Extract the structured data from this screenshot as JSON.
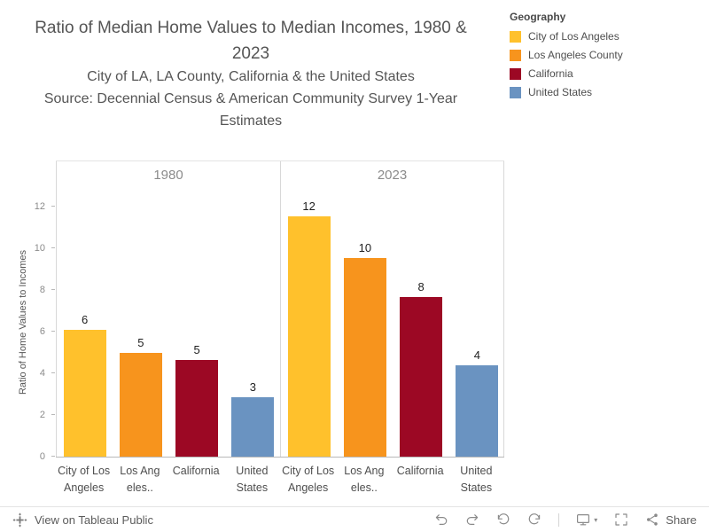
{
  "header": {
    "title": "Ratio of Median Home Values to Median Incomes, 1980 & 2023",
    "subtitle1": "City of LA, LA County, California & the United States",
    "subtitle2": "Source: Decennial Census & American Community Survey 1-Year Estimates"
  },
  "legend": {
    "title": "Geography",
    "items": [
      {
        "label": "City of Los Angeles",
        "color": "#FFC12C"
      },
      {
        "label": "Los Angeles County",
        "color": "#F7941D"
      },
      {
        "label": "California",
        "color": "#9C0824"
      },
      {
        "label": "United States",
        "color": "#6A93C1"
      }
    ]
  },
  "chart_data": {
    "type": "bar",
    "title": "Ratio of Median Home Values to Median Incomes, 1980 & 2023",
    "ylabel": "Ratio of Home Values to Incomes",
    "xlabel": "",
    "y_ticks": [
      0,
      2,
      4,
      6,
      8,
      10,
      12
    ],
    "ylim": [
      0,
      12.9
    ],
    "grid": false,
    "legend_position": "top-right",
    "categories": [
      "City of Los Angeles",
      "Los Angeles County",
      "California",
      "United States"
    ],
    "category_tick_lines": [
      [
        "City of Los",
        "Angeles"
      ],
      [
        "Los Ang",
        "eles.."
      ],
      [
        "California"
      ],
      [
        "United",
        "States"
      ]
    ],
    "colors": [
      "#FFC12C",
      "#F7941D",
      "#9C0824",
      "#6A93C1"
    ],
    "panels": [
      {
        "label": "1980",
        "values": [
          6.1,
          5.0,
          4.65,
          2.85
        ],
        "bar_labels": [
          "6",
          "5",
          "5",
          "3"
        ]
      },
      {
        "label": "2023",
        "values": [
          11.55,
          9.55,
          7.65,
          4.4
        ],
        "bar_labels": [
          "12",
          "10",
          "8",
          "4"
        ]
      }
    ]
  },
  "toolbar": {
    "view_label": "View on Tableau Public",
    "share_label": "Share",
    "icons": [
      "tableau-logo",
      "undo",
      "redo",
      "reset",
      "refresh",
      "device-preview",
      "fullscreen",
      "share"
    ]
  }
}
